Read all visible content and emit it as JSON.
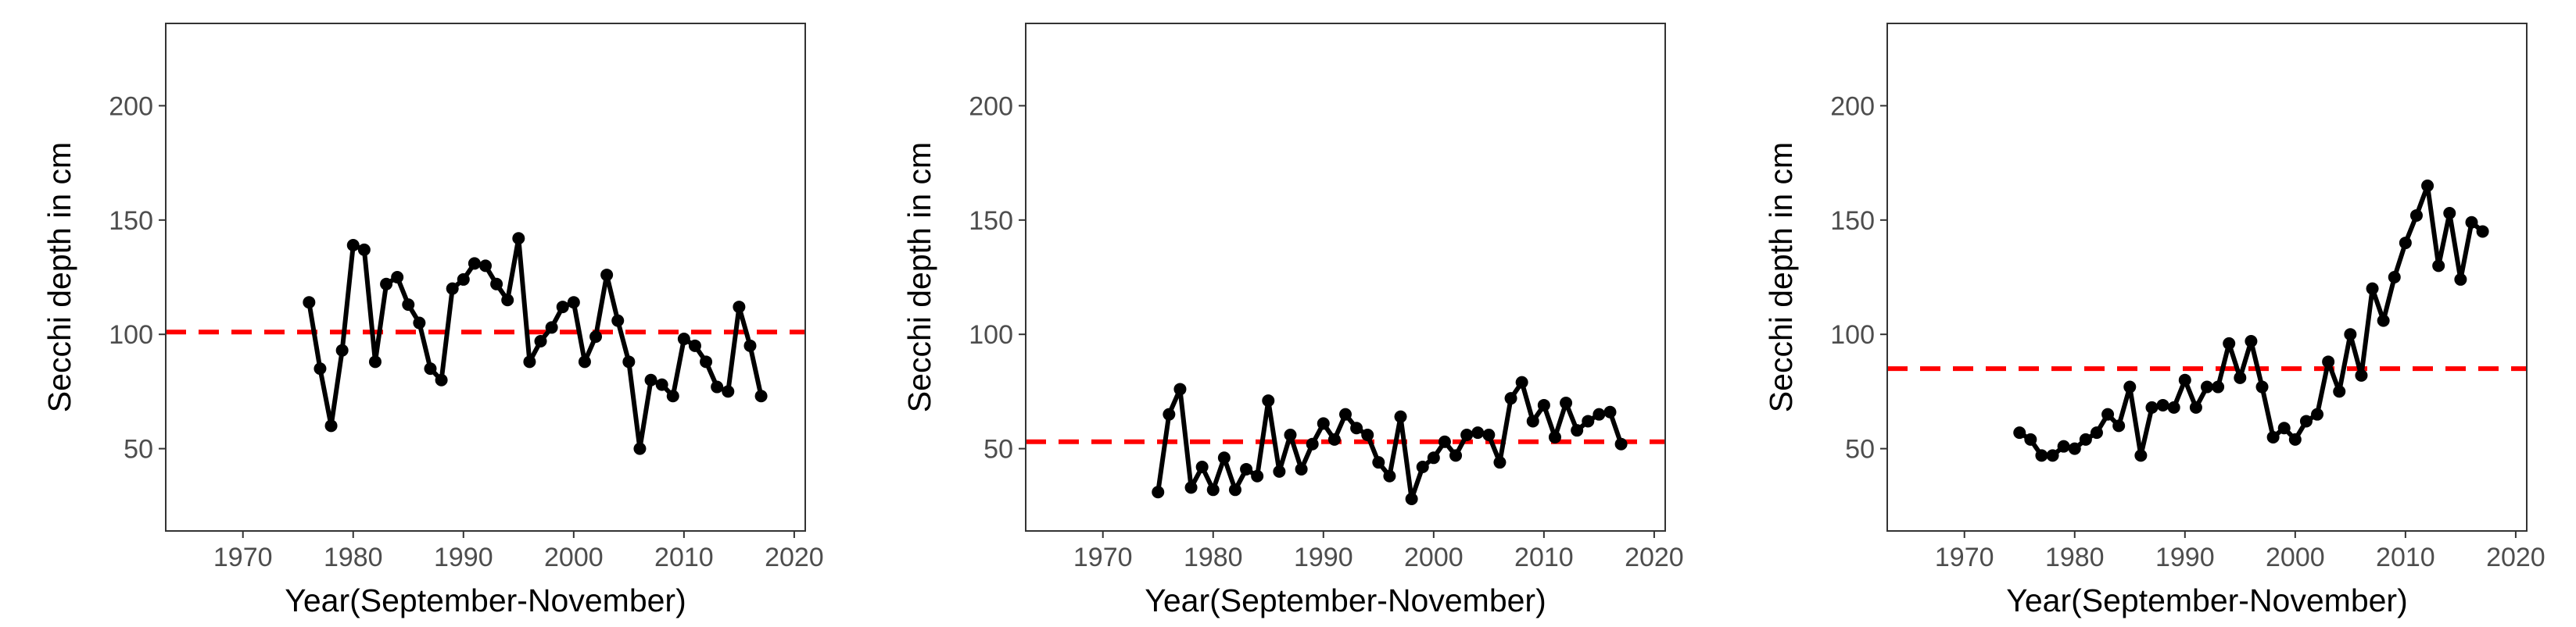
{
  "chart_data": [
    {
      "type": "line",
      "xlabel": "Year(September-November)",
      "ylabel": "Secchi depth in cm",
      "xlim": [
        1963,
        2021
      ],
      "ylim": [
        14,
        236
      ],
      "xticks": [
        1970,
        1980,
        1990,
        2000,
        2010,
        2020
      ],
      "yticks": [
        50,
        100,
        150,
        200
      ],
      "grid": false,
      "reference_line": {
        "y": 101,
        "style": "dashed",
        "color": "#ff0000"
      },
      "series": [
        {
          "color": "#000000",
          "x": [
            1976,
            1977,
            1978,
            1979,
            1980,
            1981,
            1982,
            1983,
            1984,
            1985,
            1986,
            1987,
            1988,
            1989,
            1990,
            1991,
            1992,
            1993,
            1994,
            1995,
            1996,
            1997,
            1998,
            1999,
            2000,
            2001,
            2002,
            2003,
            2004,
            2005,
            2006,
            2007,
            2008,
            2009,
            2010,
            2011,
            2012,
            2013,
            2014,
            2015,
            2016,
            2017
          ],
          "y": [
            114,
            85,
            60,
            93,
            139,
            137,
            88,
            122,
            125,
            113,
            105,
            85,
            80,
            120,
            124,
            131,
            130,
            122,
            115,
            142,
            88,
            97,
            103,
            112,
            114,
            88,
            99,
            126,
            106,
            88,
            50,
            80,
            78,
            73,
            98,
            95,
            88,
            77,
            75,
            112,
            95,
            73
          ]
        }
      ]
    },
    {
      "type": "line",
      "xlabel": "Year(September-November)",
      "ylabel": "Secchi depth in cm",
      "xlim": [
        1963,
        2021
      ],
      "ylim": [
        14,
        236
      ],
      "xticks": [
        1970,
        1980,
        1990,
        2000,
        2010,
        2020
      ],
      "yticks": [
        50,
        100,
        150,
        200
      ],
      "grid": false,
      "reference_line": {
        "y": 53,
        "style": "dashed",
        "color": "#ff0000"
      },
      "series": [
        {
          "color": "#000000",
          "x": [
            1975,
            1976,
            1977,
            1978,
            1979,
            1980,
            1981,
            1982,
            1983,
            1984,
            1985,
            1986,
            1987,
            1988,
            1989,
            1990,
            1991,
            1992,
            1993,
            1994,
            1995,
            1996,
            1997,
            1998,
            1999,
            2000,
            2001,
            2002,
            2003,
            2004,
            2005,
            2006,
            2007,
            2008,
            2009,
            2010,
            2011,
            2012,
            2013,
            2014,
            2015,
            2016,
            2017
          ],
          "y": [
            31,
            65,
            76,
            33,
            42,
            32,
            46,
            32,
            41,
            38,
            71,
            40,
            56,
            41,
            52,
            61,
            54,
            65,
            59,
            56,
            44,
            38,
            64,
            28,
            42,
            46,
            53,
            47,
            56,
            57,
            56,
            44,
            72,
            79,
            62,
            69,
            55,
            70,
            58,
            62,
            65,
            66,
            52
          ]
        }
      ]
    },
    {
      "type": "line",
      "xlabel": "Year(September-November)",
      "ylabel": "Secchi depth in cm",
      "xlim": [
        1963,
        2021
      ],
      "ylim": [
        14,
        236
      ],
      "xticks": [
        1970,
        1980,
        1990,
        2000,
        2010,
        2020
      ],
      "yticks": [
        50,
        100,
        150,
        200
      ],
      "grid": false,
      "reference_line": {
        "y": 85,
        "style": "dashed",
        "color": "#ff0000"
      },
      "series": [
        {
          "color": "#000000",
          "x": [
            1975,
            1976,
            1977,
            1978,
            1979,
            1980,
            1981,
            1982,
            1983,
            1984,
            1985,
            1986,
            1987,
            1988,
            1989,
            1990,
            1991,
            1992,
            1993,
            1994,
            1995,
            1996,
            1997,
            1998,
            1999,
            2000,
            2001,
            2002,
            2003,
            2004,
            2005,
            2006,
            2007,
            2008,
            2009,
            2010,
            2011,
            2012,
            2013,
            2014,
            2015,
            2016,
            2017
          ],
          "y": [
            57,
            54,
            47,
            47,
            51,
            50,
            54,
            57,
            65,
            60,
            77,
            47,
            68,
            69,
            68,
            80,
            68,
            77,
            77,
            96,
            81,
            97,
            77,
            55,
            59,
            54,
            62,
            65,
            88,
            75,
            100,
            82,
            120,
            106,
            125,
            140,
            152,
            165,
            130,
            153,
            124,
            149,
            145
          ]
        }
      ]
    }
  ]
}
